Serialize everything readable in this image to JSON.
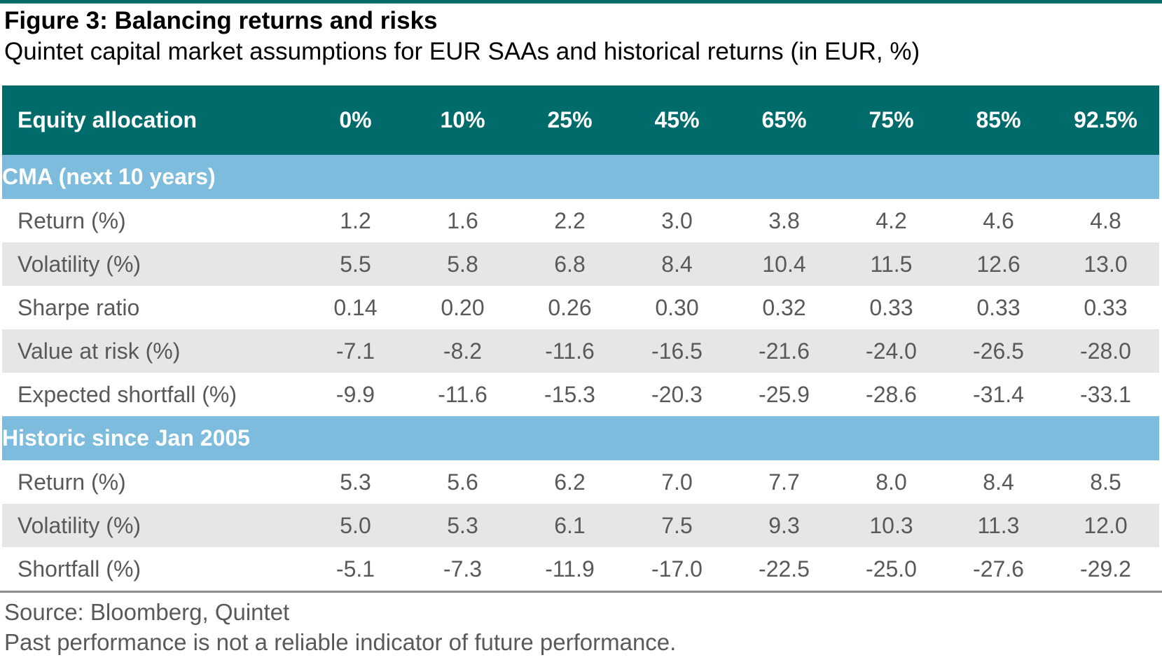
{
  "figure": {
    "title": "Figure 3: Balancing returns and risks",
    "subtitle": "Quintet capital market assumptions for EUR SAAs and historical returns (in EUR, %)"
  },
  "table": {
    "header_label": "Equity allocation",
    "columns": [
      "0%",
      "10%",
      "25%",
      "45%",
      "65%",
      "75%",
      "85%",
      "92.5%"
    ],
    "sections": [
      {
        "title": "CMA (next 10 years)",
        "rows": [
          {
            "label": "Return (%)",
            "values": [
              "1.2",
              "1.6",
              "2.2",
              "3.0",
              "3.8",
              "4.2",
              "4.6",
              "4.8"
            ]
          },
          {
            "label": "Volatility (%)",
            "values": [
              "5.5",
              "5.8",
              "6.8",
              "8.4",
              "10.4",
              "11.5",
              "12.6",
              "13.0"
            ]
          },
          {
            "label": "Sharpe ratio",
            "values": [
              "0.14",
              "0.20",
              "0.26",
              "0.30",
              "0.32",
              "0.33",
              "0.33",
              "0.33"
            ]
          },
          {
            "label": "Value at risk (%)",
            "values": [
              "-7.1",
              "-8.2",
              "-11.6",
              "-16.5",
              "-21.6",
              "-24.0",
              "-26.5",
              "-28.0"
            ]
          },
          {
            "label": "Expected shortfall (%)",
            "values": [
              "-9.9",
              "-11.6",
              "-15.3",
              "-20.3",
              "-25.9",
              "-28.6",
              "-31.4",
              "-33.1"
            ]
          }
        ]
      },
      {
        "title": "Historic since Jan 2005",
        "rows": [
          {
            "label": "Return (%)",
            "values": [
              "5.3",
              "5.6",
              "6.2",
              "7.0",
              "7.7",
              "8.0",
              "8.4",
              "8.5"
            ]
          },
          {
            "label": "Volatility (%)",
            "values": [
              "5.0",
              "5.3",
              "6.1",
              "7.5",
              "9.3",
              "10.3",
              "11.3",
              "12.0"
            ]
          },
          {
            "label": "Shortfall (%)",
            "values": [
              "-5.1",
              "-7.3",
              "-11.9",
              "-17.0",
              "-22.5",
              "-25.0",
              "-27.6",
              "-29.2"
            ]
          }
        ]
      }
    ]
  },
  "footer": {
    "source": "Source: Bloomberg, Quintet",
    "disclaimer": "Past performance is not a reliable indicator of future performance."
  },
  "colors": {
    "header_bg": "#006b6b",
    "section_bg": "#7dbcdc",
    "stripe_bg": "#e6e6e6",
    "text_gray": "#595959"
  }
}
